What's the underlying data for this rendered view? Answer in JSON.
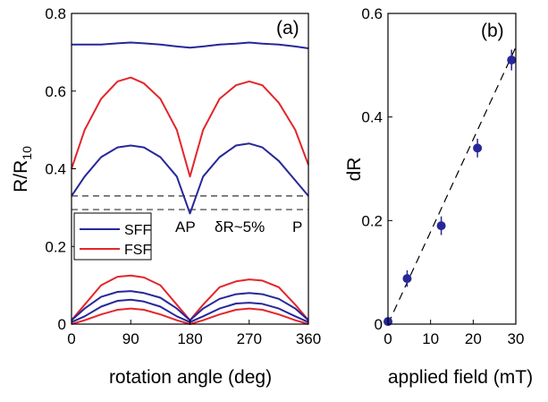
{
  "chart_data": [
    {
      "panel": "(a)",
      "type": "line",
      "xlabel": "rotation angle (deg)",
      "ylabel": "R/R",
      "ylabel_sub": "10",
      "xlim": [
        0,
        360
      ],
      "ylim": [
        0,
        0.8
      ],
      "xticks": [
        "0",
        "90",
        "180",
        "270",
        "360"
      ],
      "yticks": [
        "0",
        "0.2",
        "0.4",
        "0.6",
        "0.8"
      ],
      "grid": false,
      "legend": {
        "placement": "middle-left",
        "entries": [
          "SFF",
          "FSF"
        ]
      },
      "colors": {
        "SFF": "#27279a",
        "FSF": "#e3262b"
      },
      "annotations": [
        "AP",
        "δR~5%",
        "P"
      ],
      "reference_lines": [
        0.33,
        0.295
      ],
      "series": [
        {
          "name": "SFF",
          "x": [
            0,
            20,
            45,
            70,
            90,
            110,
            135,
            160,
            180,
            200,
            225,
            250,
            270,
            290,
            315,
            340,
            360
          ],
          "values": [
            0.72,
            0.72,
            0.72,
            0.723,
            0.725,
            0.723,
            0.72,
            0.715,
            0.712,
            0.715,
            0.72,
            0.722,
            0.725,
            0.722,
            0.72,
            0.715,
            0.71
          ]
        },
        {
          "name": "FSF",
          "x": [
            0,
            20,
            45,
            70,
            90,
            110,
            135,
            160,
            180,
            200,
            225,
            250,
            270,
            290,
            315,
            340,
            360
          ],
          "values": [
            0.4,
            0.5,
            0.58,
            0.625,
            0.635,
            0.62,
            0.58,
            0.5,
            0.38,
            0.5,
            0.58,
            0.615,
            0.625,
            0.615,
            0.57,
            0.5,
            0.41
          ]
        },
        {
          "name": "SFF",
          "x": [
            0,
            20,
            45,
            70,
            90,
            110,
            135,
            160,
            180,
            200,
            225,
            250,
            270,
            290,
            315,
            340,
            360
          ],
          "values": [
            0.33,
            0.38,
            0.43,
            0.455,
            0.46,
            0.455,
            0.43,
            0.38,
            0.285,
            0.38,
            0.43,
            0.46,
            0.465,
            0.455,
            0.42,
            0.37,
            0.33
          ]
        },
        {
          "name": "FSF",
          "x": [
            0,
            20,
            45,
            70,
            90,
            110,
            135,
            160,
            180,
            200,
            225,
            250,
            270,
            290,
            315,
            340,
            360
          ],
          "values": [
            0.01,
            0.05,
            0.1,
            0.122,
            0.125,
            0.12,
            0.1,
            0.05,
            0.01,
            0.05,
            0.095,
            0.11,
            0.115,
            0.112,
            0.095,
            0.05,
            0.01
          ]
        },
        {
          "name": "SFF",
          "x": [
            0,
            20,
            45,
            70,
            90,
            110,
            135,
            160,
            180,
            200,
            225,
            250,
            270,
            290,
            315,
            340,
            360
          ],
          "values": [
            0.01,
            0.04,
            0.07,
            0.083,
            0.085,
            0.08,
            0.068,
            0.04,
            0.01,
            0.04,
            0.065,
            0.077,
            0.08,
            0.077,
            0.065,
            0.04,
            0.01
          ]
        },
        {
          "name": "SFF",
          "x": [
            0,
            20,
            45,
            70,
            90,
            110,
            135,
            160,
            180,
            200,
            225,
            250,
            270,
            290,
            315,
            340,
            360
          ],
          "values": [
            0.005,
            0.02,
            0.045,
            0.06,
            0.063,
            0.058,
            0.045,
            0.02,
            0.005,
            0.02,
            0.04,
            0.053,
            0.055,
            0.052,
            0.04,
            0.02,
            0.005
          ]
        },
        {
          "name": "FSF",
          "x": [
            0,
            20,
            45,
            70,
            90,
            110,
            135,
            160,
            180,
            200,
            225,
            250,
            270,
            290,
            315,
            340,
            360
          ],
          "values": [
            0.0,
            0.01,
            0.025,
            0.037,
            0.04,
            0.037,
            0.025,
            0.01,
            0.0,
            0.01,
            0.025,
            0.037,
            0.04,
            0.037,
            0.025,
            0.01,
            0.0
          ]
        }
      ]
    },
    {
      "panel": "(b)",
      "type": "scatter",
      "xlabel": "applied field (mT)",
      "ylabel": "dR",
      "xlim": [
        0,
        30
      ],
      "ylim": [
        0,
        0.6
      ],
      "xticks": [
        "0",
        "10",
        "20",
        "30"
      ],
      "yticks": [
        "0",
        "0.2",
        "0.4",
        "0.6"
      ],
      "grid": false,
      "marker_color": "#27279a",
      "points": [
        {
          "x": 0,
          "y": 0.005,
          "err": 0.0
        },
        {
          "x": 4.5,
          "y": 0.088,
          "err": 0.016
        },
        {
          "x": 12.5,
          "y": 0.19,
          "err": 0.018
        },
        {
          "x": 21,
          "y": 0.34,
          "err": 0.018
        },
        {
          "x": 29,
          "y": 0.51,
          "err": 0.02
        }
      ],
      "fit_line": {
        "x": [
          0,
          30
        ],
        "y": [
          0.0,
          0.535
        ]
      }
    }
  ]
}
